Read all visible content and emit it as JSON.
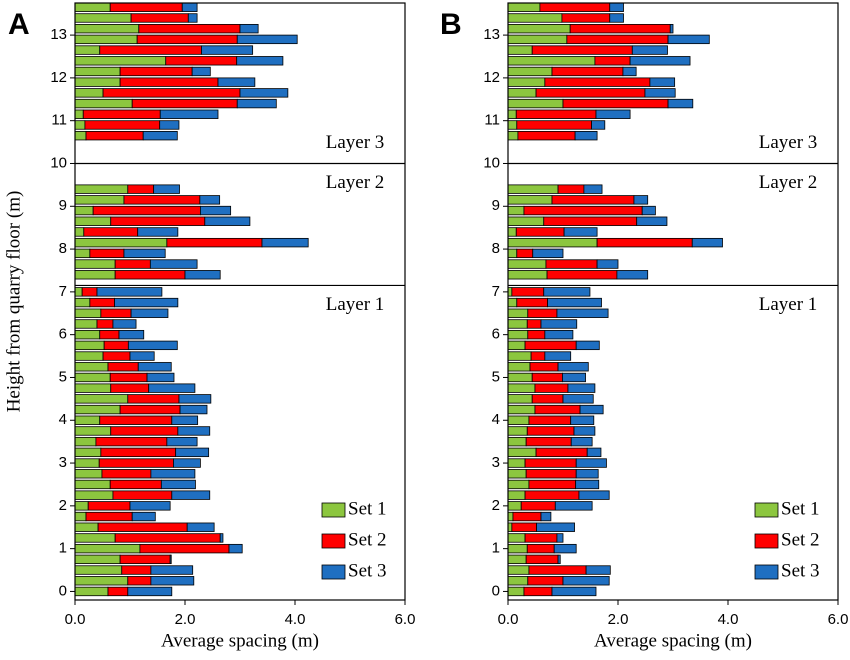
{
  "chart_data": [
    {
      "type": "bar",
      "orientation": "horizontal",
      "stacked": true,
      "panel_label": "A",
      "xlabel": "Average spacing (m)",
      "ylabel": "Height from quarry floor (m)",
      "xlim": [
        0,
        6
      ],
      "xticks": [
        {
          "value": 0,
          "label": "0.0"
        },
        {
          "value": 2,
          "label": "2.0"
        },
        {
          "value": 4,
          "label": "4.0"
        },
        {
          "value": 6,
          "label": "6.0"
        }
      ],
      "ylim": [
        -0.2,
        13.75
      ],
      "yticks": [
        0,
        1,
        2,
        3,
        4,
        5,
        6,
        7,
        8,
        9,
        10,
        11,
        12,
        13
      ],
      "legend": "lower right",
      "layer_labels": [
        "Layer 1",
        "Layer 2",
        "Layer 3"
      ],
      "layer_boundaries": [
        7.15,
        10
      ],
      "y": [
        13.65,
        13.4,
        13.15,
        12.9,
        12.65,
        12.4,
        12.15,
        11.9,
        11.65,
        11.4,
        11.15,
        10.9,
        10.65,
        9.4,
        9.15,
        8.9,
        8.65,
        8.4,
        8.15,
        7.9,
        7.65,
        7.4,
        7,
        6.75,
        6.5,
        6.25,
        6,
        5.75,
        5.5,
        5.25,
        5,
        4.75,
        4.5,
        4.25,
        4,
        3.75,
        3.5,
        3.25,
        3,
        2.75,
        2.5,
        2.25,
        2,
        1.75,
        1.5,
        1.25,
        1,
        0.75,
        0.5,
        0.25,
        0
      ],
      "series": [
        {
          "name": "Set 1",
          "color": "#8cc63f",
          "values": [
            0.64,
            1.02,
            1.16,
            1.13,
            0.45,
            1.65,
            0.82,
            0.82,
            0.51,
            1.04,
            0.15,
            0.18,
            0.2,
            0.96,
            0.89,
            0.33,
            0.65,
            0.16,
            1.67,
            0.27,
            0.73,
            0.73,
            0.13,
            0.27,
            0.47,
            0.4,
            0.45,
            0.53,
            0.51,
            0.6,
            0.64,
            0.65,
            0.96,
            0.82,
            0.45,
            0.65,
            0.38,
            0.47,
            0.44,
            0.49,
            0.64,
            0.69,
            0.24,
            0.2,
            0.42,
            0.73,
            1.18,
            0.82,
            0.85,
            0.96,
            0.6
          ]
        },
        {
          "name": "Set 2",
          "color": "#ff0000",
          "values": [
            1.31,
            1.04,
            1.84,
            1.82,
            1.85,
            1.29,
            1.31,
            1.78,
            2.49,
            1.91,
            1.4,
            1.36,
            1.04,
            0.47,
            1.38,
            1.95,
            1.71,
            0.98,
            1.73,
            0.62,
            0.64,
            1.27,
            0.27,
            0.45,
            0.55,
            0.29,
            0.35,
            0.44,
            0.49,
            0.55,
            0.67,
            0.69,
            0.93,
            1.09,
            1.31,
            1.22,
            1.29,
            1.36,
            1.35,
            0.89,
            0.93,
            1.07,
            0.76,
            0.84,
            1.62,
            1.91,
            1.62,
            0.91,
            0.53,
            0.42,
            0.36
          ]
        },
        {
          "name": "Set 3",
          "color": "#1f6fc1",
          "values": [
            0.27,
            0.16,
            0.33,
            1.09,
            0.93,
            0.84,
            0.33,
            0.67,
            0.87,
            0.71,
            1.05,
            0.35,
            0.62,
            0.47,
            0.36,
            0.55,
            0.82,
            0.73,
            0.84,
            0.75,
            0.85,
            0.64,
            1.18,
            1.15,
            0.67,
            0.42,
            0.45,
            0.89,
            0.44,
            0.6,
            0.49,
            0.84,
            0.58,
            0.49,
            0.47,
            0.58,
            0.55,
            0.6,
            0.49,
            0.8,
            0.62,
            0.69,
            0.73,
            0.42,
            0.49,
            0.05,
            0.24,
            0.02,
            0.76,
            0.78,
            0.8
          ]
        }
      ]
    },
    {
      "type": "bar",
      "orientation": "horizontal",
      "stacked": true,
      "panel_label": "B",
      "xlabel": "Average spacing (m)",
      "xlim": [
        0,
        6
      ],
      "xticks": [
        {
          "value": 0,
          "label": "0.0"
        },
        {
          "value": 2,
          "label": "2.0"
        },
        {
          "value": 4,
          "label": "4.0"
        },
        {
          "value": 6,
          "label": "6.0"
        }
      ],
      "ylim": [
        -0.2,
        13.75
      ],
      "yticks": [
        0,
        1,
        2,
        3,
        4,
        5,
        6,
        7,
        8,
        9,
        10,
        11,
        12,
        13
      ],
      "legend": "lower right",
      "layer_labels": [
        "Layer 1",
        "Layer 2",
        "Layer 3"
      ],
      "layer_boundaries": [
        7.15,
        10
      ],
      "y": [
        13.65,
        13.4,
        13.15,
        12.9,
        12.65,
        12.4,
        12.15,
        11.9,
        11.65,
        11.4,
        11.15,
        10.9,
        10.65,
        9.4,
        9.15,
        8.9,
        8.65,
        8.4,
        8.15,
        7.9,
        7.65,
        7.4,
        7,
        6.75,
        6.5,
        6.25,
        6,
        5.75,
        5.5,
        5.25,
        5,
        4.75,
        4.5,
        4.25,
        4,
        3.75,
        3.5,
        3.25,
        3,
        2.75,
        2.5,
        2.25,
        2,
        1.75,
        1.5,
        1.25,
        1,
        0.75,
        0.5,
        0.25,
        0
      ],
      "series": [
        {
          "name": "Set 1",
          "color": "#8cc63f",
          "values": [
            0.58,
            0.98,
            1.13,
            1.07,
            0.44,
            1.58,
            0.8,
            0.67,
            0.51,
            1.0,
            0.15,
            0.16,
            0.18,
            0.91,
            0.8,
            0.29,
            0.65,
            0.15,
            1.62,
            0.16,
            0.69,
            0.71,
            0.07,
            0.16,
            0.36,
            0.35,
            0.36,
            0.31,
            0.42,
            0.4,
            0.44,
            0.49,
            0.44,
            0.49,
            0.38,
            0.35,
            0.33,
            0.51,
            0.31,
            0.33,
            0.38,
            0.31,
            0.24,
            0.09,
            0.07,
            0.31,
            0.35,
            0.33,
            0.38,
            0.36,
            0.29
          ]
        },
        {
          "name": "Set 2",
          "color": "#ff0000",
          "values": [
            1.27,
            0.87,
            1.82,
            1.84,
            1.82,
            0.64,
            1.29,
            1.91,
            1.98,
            1.91,
            1.45,
            1.36,
            1.04,
            0.47,
            1.49,
            2.15,
            1.69,
            0.87,
            1.73,
            0.29,
            0.93,
            1.27,
            0.58,
            0.56,
            0.53,
            0.25,
            0.31,
            0.93,
            0.25,
            0.51,
            0.55,
            0.6,
            0.56,
            0.82,
            0.76,
            0.85,
            0.82,
            0.93,
            0.93,
            0.91,
            0.85,
            0.98,
            0.62,
            0.51,
            0.45,
            0.58,
            0.49,
            0.58,
            1.04,
            0.64,
            0.51
          ]
        },
        {
          "name": "Set 3",
          "color": "#1f6fc1",
          "values": [
            0.25,
            0.25,
            0.05,
            0.75,
            0.64,
            1.09,
            0.24,
            0.45,
            0.55,
            0.45,
            0.62,
            0.24,
            0.4,
            0.33,
            0.25,
            0.24,
            0.55,
            0.6,
            0.55,
            0.55,
            0.38,
            0.56,
            0.84,
            0.98,
            0.93,
            0.65,
            0.51,
            0.42,
            0.47,
            0.55,
            0.42,
            0.49,
            0.55,
            0.42,
            0.42,
            0.38,
            0.38,
            0.25,
            0.55,
            0.4,
            0.42,
            0.55,
            0.67,
            0.18,
            0.69,
            0.11,
            0.4,
            0.04,
            0.44,
            0.84,
            0.8
          ]
        }
      ]
    }
  ]
}
